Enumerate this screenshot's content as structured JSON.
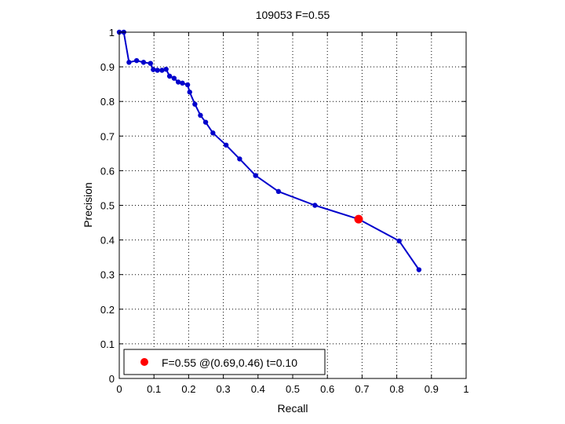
{
  "chart_data": {
    "type": "line",
    "title": "109053 F=0.55",
    "xlabel": "Recall",
    "ylabel": "Precision",
    "xlim": [
      0,
      1
    ],
    "ylim": [
      0,
      1
    ],
    "xticks": [
      "0",
      "0.1",
      "0.2",
      "0.3",
      "0.4",
      "0.5",
      "0.6",
      "0.7",
      "0.8",
      "0.9",
      "1"
    ],
    "yticks": [
      "0",
      "0.1",
      "0.2",
      "0.3",
      "0.4",
      "0.5",
      "0.6",
      "0.7",
      "0.8",
      "0.9",
      "1"
    ],
    "grid": true,
    "grid_style": "dotted",
    "series": [
      {
        "color": "#0000cc",
        "marker": "dot",
        "points": [
          [
            0.0,
            1.0
          ],
          [
            0.013,
            1.0
          ],
          [
            0.028,
            0.913
          ],
          [
            0.05,
            0.918
          ],
          [
            0.07,
            0.913
          ],
          [
            0.09,
            0.91
          ],
          [
            0.098,
            0.892
          ],
          [
            0.11,
            0.89
          ],
          [
            0.123,
            0.89
          ],
          [
            0.135,
            0.893
          ],
          [
            0.145,
            0.873
          ],
          [
            0.158,
            0.867
          ],
          [
            0.17,
            0.856
          ],
          [
            0.182,
            0.853
          ],
          [
            0.197,
            0.848
          ],
          [
            0.203,
            0.827
          ],
          [
            0.218,
            0.792
          ],
          [
            0.234,
            0.76
          ],
          [
            0.249,
            0.74
          ],
          [
            0.27,
            0.709
          ],
          [
            0.308,
            0.674
          ],
          [
            0.347,
            0.634
          ],
          [
            0.393,
            0.586
          ],
          [
            0.459,
            0.54
          ],
          [
            0.564,
            0.5
          ],
          [
            0.69,
            0.46
          ],
          [
            0.807,
            0.397
          ],
          [
            0.864,
            0.314
          ]
        ]
      }
    ],
    "highlight": {
      "color": "#ff0000",
      "x": 0.69,
      "y": 0.46,
      "label": "F=0.55 @(0.69,0.46) t=0.10"
    },
    "legend_position": "bottom-left"
  }
}
